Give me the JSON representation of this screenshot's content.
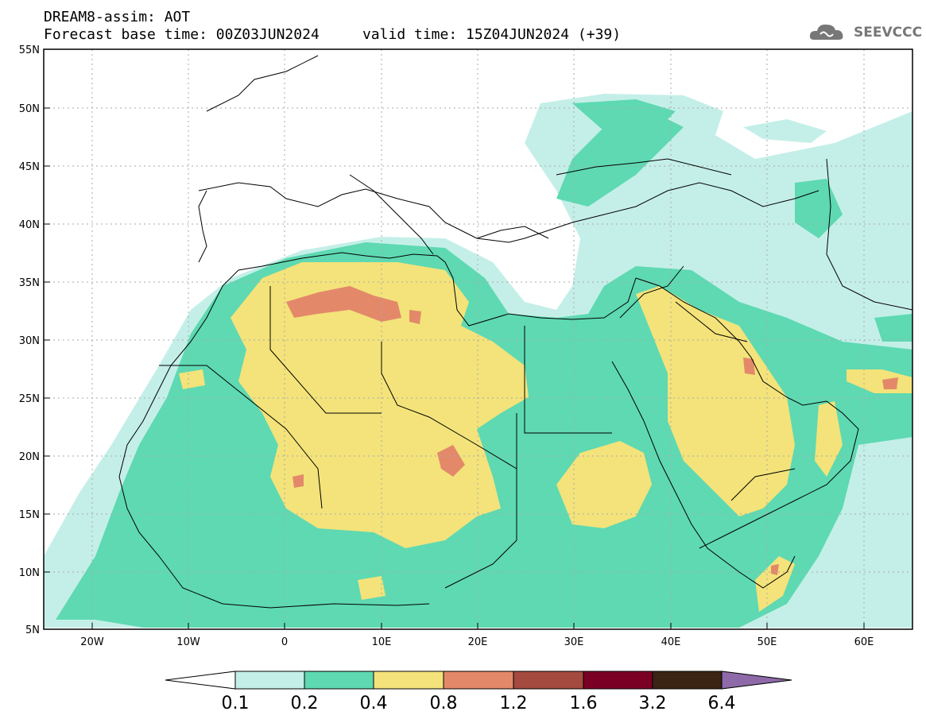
{
  "header": {
    "title_line1": "DREAM8-assim: AOT",
    "title_line2": "Forecast base time: 00Z03JUN2024     valid time: 15Z04JUN2024 (+39)"
  },
  "logo": {
    "text": "SEEVCCC",
    "icon": "cloud-logo-icon"
  },
  "map": {
    "lon_range": [
      -25,
      65
    ],
    "lat_range": [
      5,
      55
    ],
    "lat_labels": [
      "55N",
      "50N",
      "45N",
      "40N",
      "35N",
      "30N",
      "25N",
      "20N",
      "15N",
      "10N",
      "5N"
    ],
    "lon_labels": [
      "20W",
      "10W",
      "0",
      "10E",
      "20E",
      "30E",
      "40E",
      "50E",
      "60E"
    ],
    "grid": true
  },
  "colorbar": {
    "thresholds": [
      "0.1",
      "0.2",
      "0.4",
      "0.8",
      "1.2",
      "1.6",
      "3.2",
      "6.4"
    ],
    "colors": [
      "#ffffff",
      "#c4efe8",
      "#5ed9b2",
      "#f3e37a",
      "#e3896a",
      "#a54a3f",
      "#7a0025",
      "#3b2414",
      "#8e6aa8"
    ]
  }
}
